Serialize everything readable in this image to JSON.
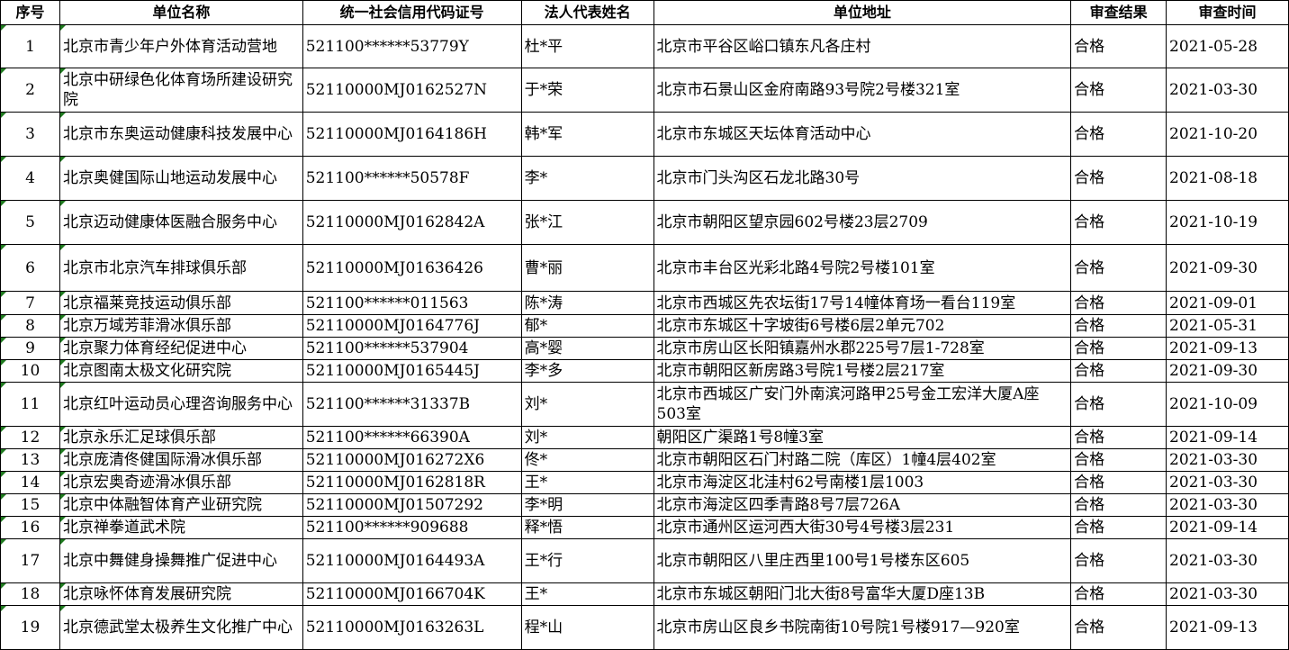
{
  "headers": [
    "序号",
    "单位名称",
    "统一社会信用代码证号",
    "法人代表姓名",
    "单位地址",
    "审查结果",
    "审查时间"
  ],
  "rows": [
    [
      "1",
      "北京市青少年户外体育活动营地",
      "521100******53779Y",
      "杜*平",
      "北京市平谷区峪口镇东凡各庄村",
      "合格",
      "2021-05-28"
    ],
    [
      "2",
      "北京中研绿色化体育场所建设研究院",
      "52110000MJ0162527N",
      "于*荣",
      "北京市石景山区金府南路93号院2号楼321室",
      "合格",
      "2021-03-30"
    ],
    [
      "3",
      "北京市东奥运动健康科技发展中心",
      "52110000MJ0164186H",
      "韩*军",
      "北京市东城区天坛体育活动中心",
      "合格",
      "2021-10-20"
    ],
    [
      "4",
      "北京奥健国际山地运动发展中心",
      "521100******50578F",
      "李*",
      "北京市门头沟区石龙北路30号",
      "合格",
      "2021-08-18"
    ],
    [
      "5",
      "北京迈动健康体医融合服务中心",
      "52110000MJ0162842A",
      "张*江",
      "北京市朝阳区望京园602号楼23层2709",
      "合格",
      "2021-10-19"
    ],
    [
      "6",
      "北京市北京汽车排球俱乐部",
      "52110000MJ01636426",
      "曹*丽",
      "北京市丰台区光彩北路4号院2号楼101室",
      "合格",
      "2021-09-30"
    ],
    [
      "7",
      "北京福莱竞技运动俱乐部",
      "521100******011563",
      "陈*涛",
      "北京市西城区先农坛街17号14幢体育场一看台119室",
      "合格",
      "2021-09-01"
    ],
    [
      "8",
      "北京万域芳菲滑冰俱乐部",
      "52110000MJ0164776J",
      "郁*",
      "北京市东城区十字坡街6号楼6层2单元702",
      "合格",
      "2021-05-31"
    ],
    [
      "9",
      "北京聚力体育经纪促进中心",
      "521100******537904",
      "高*婴",
      "北京市房山区长阳镇嘉州水郡225号7层1-728室",
      "合格",
      "2021-09-13"
    ],
    [
      "10",
      "北京图南太极文化研究院",
      "52110000MJ0165445J",
      "李*多",
      "北京市朝阳区新房路3号院1号楼2层217室",
      "合格",
      "2021-09-30"
    ],
    [
      "11",
      "北京红叶运动员心理咨询服务中心",
      "521100******31337B",
      "刘*",
      "北京市西城区广安门外南滨河路甲25号金工宏洋大厦A座503室",
      "合格",
      "2021-10-09"
    ],
    [
      "12",
      "北京永乐汇足球俱乐部",
      "521100******66390A",
      "刘*",
      "朝阳区广渠路1号8幢3室",
      "合格",
      "2021-09-14"
    ],
    [
      "13",
      "北京庞清佟健国际滑冰俱乐部",
      "52110000MJ016272X6",
      "佟*",
      "北京市朝阳区石门村路二院（库区）1幢4层402室",
      "合格",
      "2021-03-30"
    ],
    [
      "14",
      "北京宏奥奇迹滑冰俱乐部",
      "52110000MJ0162818R",
      "王*",
      "北京市海淀区北洼村62号南楼1层1003",
      "合格",
      "2021-03-30"
    ],
    [
      "15",
      "北京中体融智体育产业研究院",
      "52110000MJ01507292",
      "李*明",
      "北京市海淀区四季青路8号7层726A",
      "合格",
      "2021-03-30"
    ],
    [
      "16",
      "北京禅拳道武术院",
      "521100******909688",
      "释*悟",
      "北京市通州区运河西大街30号4号楼3层231",
      "合格",
      "2021-09-14"
    ],
    [
      "17",
      "北京中舞健身操舞推广促进中心",
      "52110000MJ0164493A",
      "王*行",
      "北京市朝阳区八里庄西里100号1号楼东区605",
      "合格",
      "2021-03-30"
    ],
    [
      "18",
      "北京咏怀体育发展研究院",
      "52110000MJ0166704K",
      "王*",
      "北京市东城区朝阳门北大街8号富华大厦D座13B",
      "合格",
      "2021-03-30"
    ],
    [
      "19",
      "北京德武堂太极养生文化推广中心",
      "52110000MJ0163263L",
      "程*山",
      "北京市房山区良乡书院南街10号院1号楼917—920室",
      "合格",
      "2021-09-13"
    ]
  ]
}
